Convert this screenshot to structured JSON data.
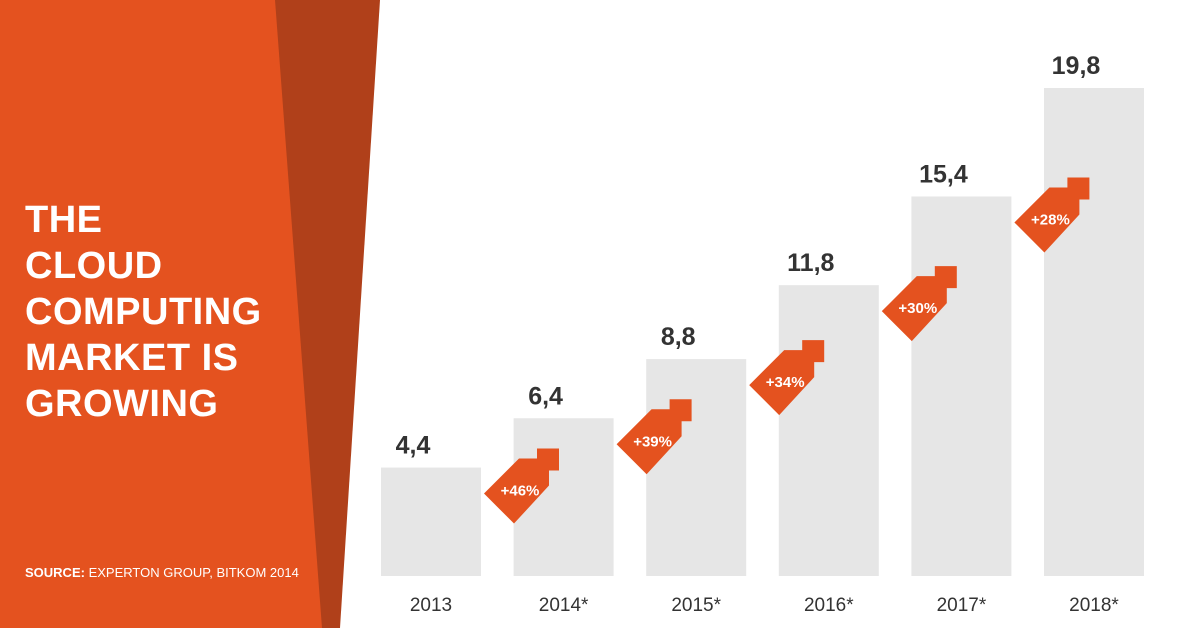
{
  "title_lines": [
    "THE",
    "CLOUD",
    "COMPUTING",
    "MARKET IS",
    "GROWING"
  ],
  "source": {
    "label": "SOURCE:",
    "text": "EXPERTON GROUP, BITKOM 2014"
  },
  "colors": {
    "panel": "#e4521f",
    "panel_shadow": "#b0401a",
    "bar": "#e6e6e6",
    "arrow": "#e4521f",
    "value_text": "#333333"
  },
  "chart_data": {
    "type": "bar",
    "title": "",
    "xlabel": "",
    "ylabel": "",
    "categories": [
      "2013",
      "2014*",
      "2015*",
      "2016*",
      "2017*",
      "2018*"
    ],
    "values": [
      4.4,
      6.4,
      8.8,
      11.8,
      15.4,
      19.8
    ],
    "value_labels": [
      "4,4",
      "6,4",
      "8,8",
      "11,8",
      "15,4",
      "19,8"
    ],
    "growth_labels": [
      "+46%",
      "+39%",
      "+34%",
      "+30%",
      "+28%"
    ],
    "ylim": [
      0,
      19.8
    ],
    "grid": false,
    "legend": "none"
  }
}
